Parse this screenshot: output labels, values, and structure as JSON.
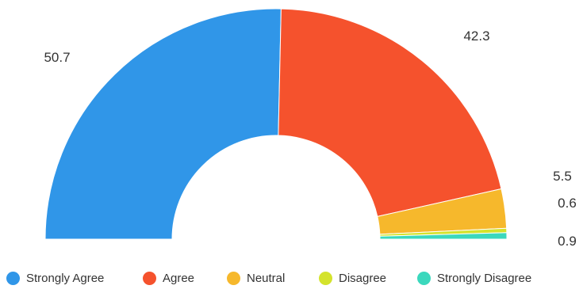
{
  "chart_data": {
    "type": "pie",
    "variant": "half-donut",
    "categories": [
      "Strongly Agree",
      "Agree",
      "Neutral",
      "Disagree",
      "Strongly Disagree"
    ],
    "values": [
      50.7,
      42.3,
      5.5,
      0.6,
      0.9
    ],
    "value_labels": [
      "50.7",
      "42.3",
      "5.5",
      "0.6",
      "0.9"
    ],
    "colors": [
      "#3096e8",
      "#f5522d",
      "#f6b82c",
      "#d4e32c",
      "#3bd8bd"
    ],
    "legend_position": "bottom",
    "title": ""
  }
}
